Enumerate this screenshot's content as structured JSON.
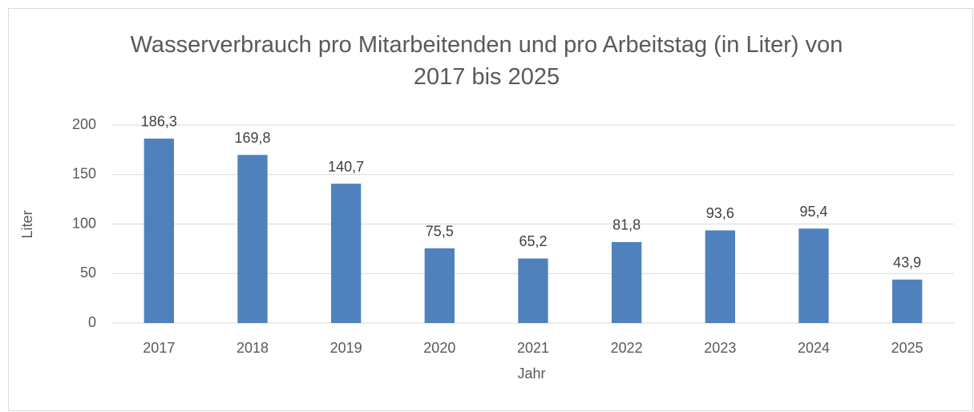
{
  "chart_data": {
    "type": "bar",
    "title": "Wasserverbrauch pro Mitarbeitenden und pro Arbeitstag (in Liter) von 2017 bis 2025",
    "x_label": "Jahr",
    "y_label": "Liter",
    "categories": [
      "2017",
      "2018",
      "2019",
      "2020",
      "2021",
      "2022",
      "2023",
      "2024",
      "2025"
    ],
    "values": [
      186.3,
      169.8,
      140.7,
      75.5,
      65.2,
      81.8,
      93.6,
      95.4,
      43.9
    ],
    "value_labels": [
      "186,3",
      "169,8",
      "140,7",
      "75,5",
      "65,2",
      "81,8",
      "93,6",
      "95,4",
      "43,9"
    ],
    "color": "#4f81bd",
    "ylim": [
      0,
      200
    ],
    "yticks": [
      0,
      50,
      100,
      150,
      200
    ],
    "grid": true
  }
}
